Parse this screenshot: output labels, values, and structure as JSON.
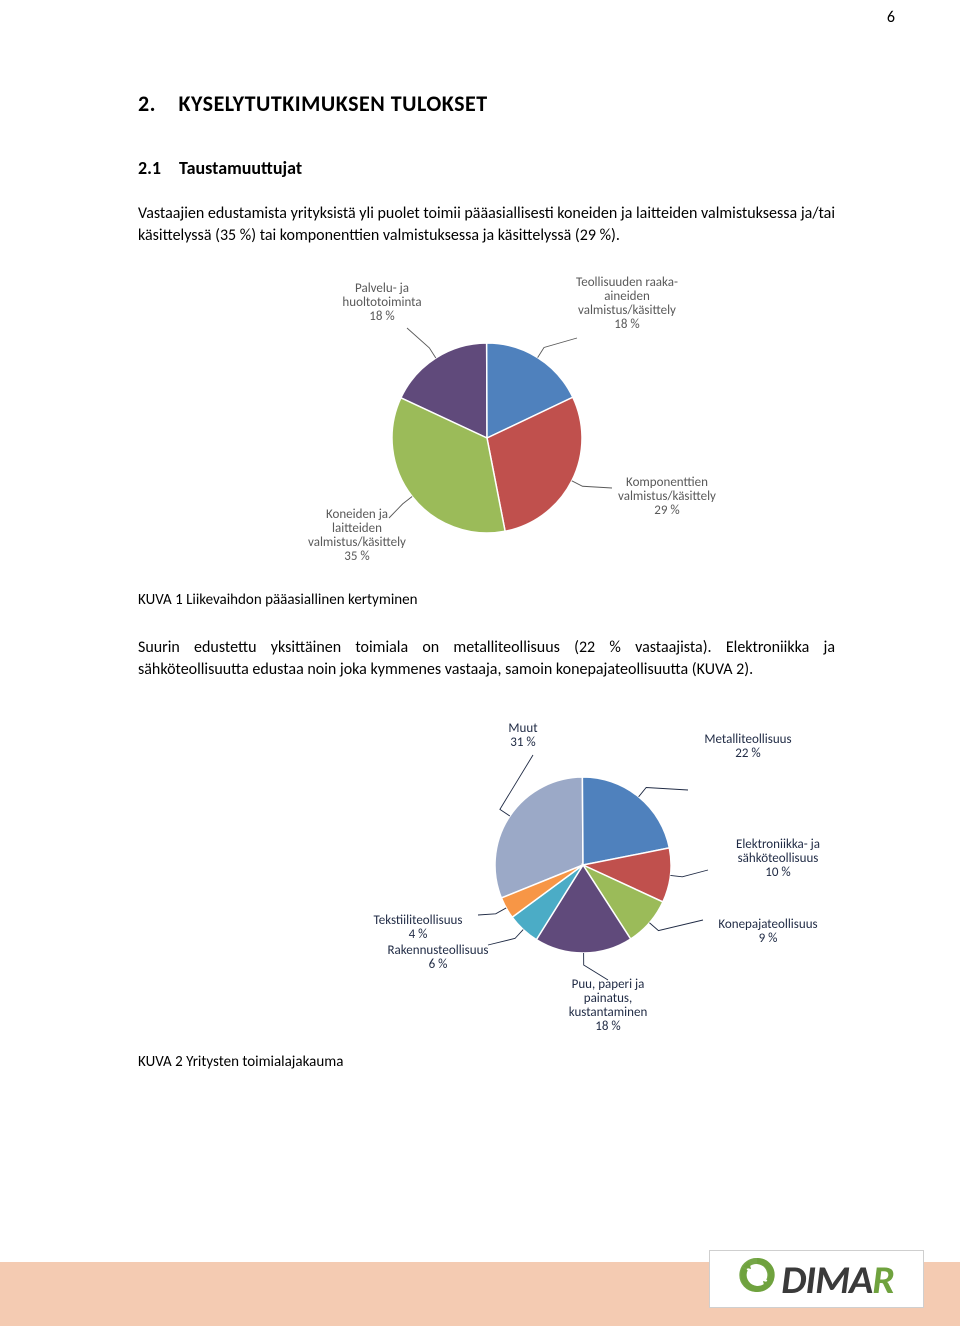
{
  "page_number": "6",
  "section_heading": "2. KYSELYTUTKIMUKSEN TULOKSET",
  "subheading": "2.1 Taustamuuttujat",
  "para1": "Vastaajien edustamista yrityksistä yli puolet toimii pääasiallisesti koneiden ja laitteiden valmistuksessa ja/tai käsittelyssä (35 %) tai komponenttien valmistuksessa ja käsittelyssä (29 %).",
  "caption1": "KUVA 1 Liikevaihdon pääasiallinen kertyminen",
  "para2": "Suurin edustettu yksittäinen toimiala on metalliteollisuus (22 % vastaajista). Elektroniikka ja sähköteollisuutta edustaa noin joka kymmenes vastaaja, samoin konepajateollisuutta (KUVA 2).",
  "caption2": "KUVA 2 Yritysten toimialajakauma",
  "chart1": {
    "type": "pie",
    "label_color": "#595959",
    "label_font_size": 13,
    "slice_border": "#ffffff",
    "slices": [
      {
        "label_lines": [
          "Palvelu- ja",
          "huoltotoiminta",
          "18 %"
        ],
        "value": 18,
        "color": "#604a7b"
      },
      {
        "label_lines": [
          "Teollisuuden raaka-",
          "aineiden",
          "valmistus/käsittely",
          "18 %"
        ],
        "value": 18,
        "color": "#4f81bd"
      },
      {
        "label_lines": [
          "Komponenttien",
          "valmistus/käsittely",
          "29 %"
        ],
        "value": 29,
        "color": "#c0504d"
      },
      {
        "label_lines": [
          "Koneiden ja",
          "laitteiden",
          "valmistus/käsittely",
          "35 %"
        ],
        "value": 35,
        "color": "#9bbb59"
      }
    ]
  },
  "chart2": {
    "type": "pie",
    "label_color": "#1f2a44",
    "label_font_size": 13,
    "slice_border": "#ffffff",
    "slices": [
      {
        "label_lines": [
          "Muut",
          "31 %"
        ],
        "value": 31,
        "color": "#9ba9c7"
      },
      {
        "label_lines": [
          "Metalliteollisuus",
          "22 %"
        ],
        "value": 22,
        "color": "#4f81bd"
      },
      {
        "label_lines": [
          "Elektroniikka- ja",
          "sähköteollisuus",
          "10 %"
        ],
        "value": 10,
        "color": "#c0504d"
      },
      {
        "label_lines": [
          "Konepajateollisuus",
          "9 %"
        ],
        "value": 9,
        "color": "#9bbb59"
      },
      {
        "label_lines": [
          "Puu, paperi ja",
          "painatus,",
          "kustantaminen",
          "18 %"
        ],
        "value": 18,
        "color": "#604a7b"
      },
      {
        "label_lines": [
          "Rakennusteollisuus",
          "6 %"
        ],
        "value": 6,
        "color": "#4bacc6"
      },
      {
        "label_lines": [
          "Tekstiiliteollisuus",
          "4 %"
        ],
        "value": 4,
        "color": "#f79646"
      }
    ]
  },
  "logo_text": "DIMAR",
  "logo_icon_colors": {
    "outer": "#6fa23e",
    "accent": "#6fa23e"
  },
  "footer_color": "#f4cbb2"
}
